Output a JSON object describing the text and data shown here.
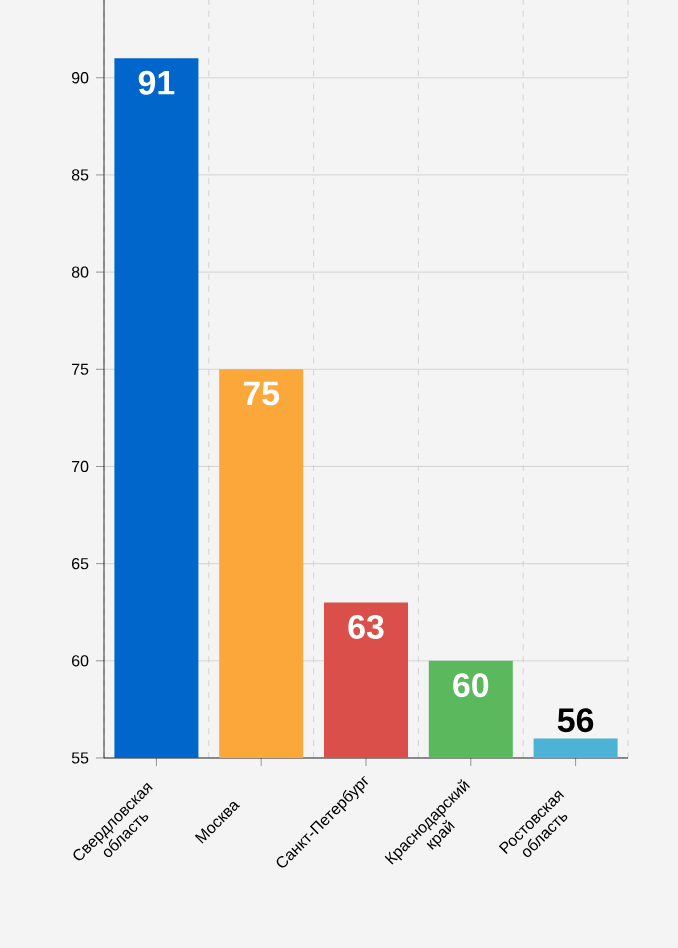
{
  "chart_data": {
    "type": "bar",
    "categories": [
      "Свердловская область",
      "Москва",
      "Санкт-Петербург",
      "Краснодарский край",
      "Ростовская область"
    ],
    "values": [
      91,
      75,
      63,
      60,
      56
    ],
    "colors": [
      "#0066cc",
      "#fba73a",
      "#da4f4a",
      "#5cb85c",
      "#4db3d6"
    ],
    "ylim": [
      55,
      94
    ],
    "yticks": [
      55,
      60,
      65,
      70,
      75,
      80,
      85,
      90
    ],
    "grid": true,
    "data_labels": true
  }
}
